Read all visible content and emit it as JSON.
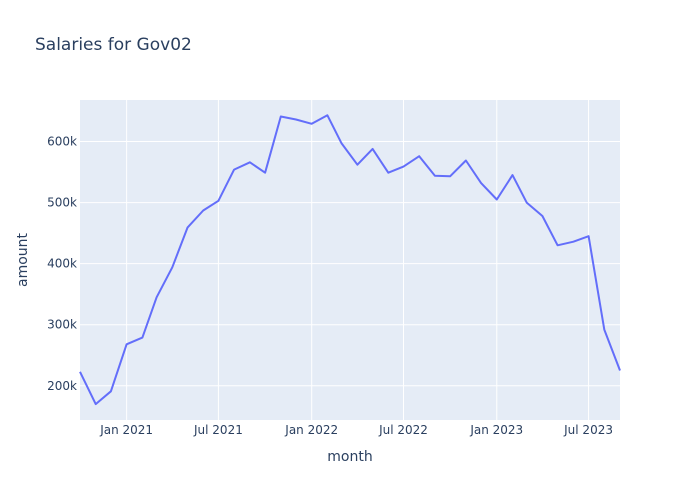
{
  "chart_data": {
    "type": "line",
    "title": "Salaries for Gov02",
    "xlabel": "month",
    "ylabel": "amount",
    "x_tick_labels": [
      "Jan 2021",
      "Jul 2021",
      "Jan 2022",
      "Jul 2022",
      "Jan 2023",
      "Jul 2023"
    ],
    "y_tick_labels": [
      "200k",
      "300k",
      "400k",
      "500k",
      "600k"
    ],
    "y_ticks": [
      200000,
      300000,
      400000,
      500000,
      600000
    ],
    "ylim": [
      144000,
      668000
    ],
    "xlim": [
      "2020-10-01",
      "2023-09-01"
    ],
    "grid": true,
    "line_color": "#636efa",
    "plot_bg": "#e5ecf6",
    "series": [
      {
        "x": [
          "2020-10-01",
          "2020-11-01",
          "2020-12-01",
          "2021-01-01",
          "2021-02-01",
          "2021-03-01",
          "2021-04-01",
          "2021-05-01",
          "2021-06-01",
          "2021-07-01",
          "2021-08-01",
          "2021-09-01",
          "2021-10-01",
          "2021-11-01",
          "2021-12-01",
          "2022-01-01",
          "2022-02-01",
          "2022-03-01",
          "2022-04-01",
          "2022-05-01",
          "2022-06-01",
          "2022-07-01",
          "2022-08-01",
          "2022-09-01",
          "2022-10-01",
          "2022-11-01",
          "2022-12-01",
          "2023-01-01",
          "2023-02-01",
          "2023-03-01",
          "2023-04-01",
          "2023-05-01",
          "2023-06-01",
          "2023-07-01",
          "2023-08-01",
          "2023-09-01"
        ],
        "values": [
          223000,
          170000,
          191000,
          268000,
          279000,
          345000,
          394000,
          459000,
          487000,
          503000,
          554000,
          566000,
          549000,
          641000,
          636000,
          629000,
          643000,
          597000,
          562000,
          588000,
          549000,
          559000,
          576000,
          544000,
          543000,
          569000,
          532000,
          505000,
          545000,
          500000,
          478000,
          430000,
          436000,
          445000,
          292000,
          225000
        ]
      }
    ]
  }
}
